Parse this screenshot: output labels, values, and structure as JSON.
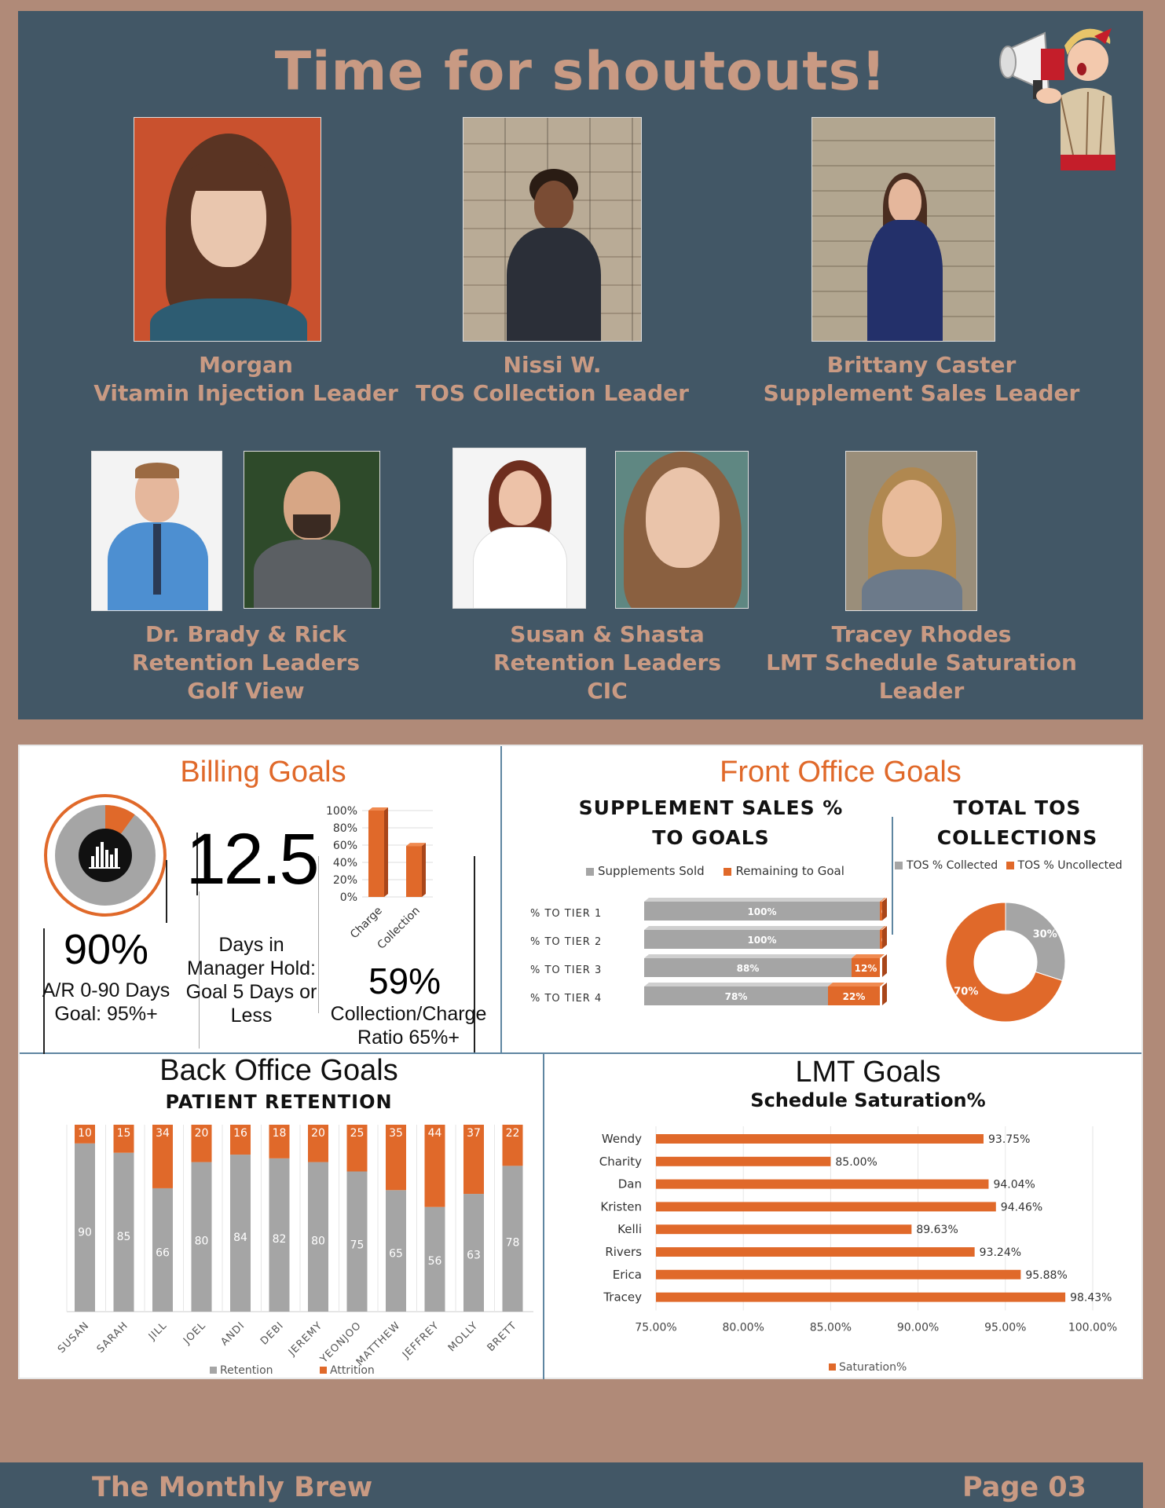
{
  "shoutouts": {
    "title": "Time for shoutouts!",
    "people": [
      {
        "lines": [
          "Morgan",
          "Vitamin Injection Leader"
        ]
      },
      {
        "lines": [
          "Nissi W.",
          "TOS Collection Leader"
        ]
      },
      {
        "lines": [
          "Brittany  Caster",
          "Supplement Sales Leader"
        ]
      },
      {
        "lines": [
          "Dr. Brady & Rick",
          "Retention Leaders",
          "Golf View"
        ]
      },
      {
        "lines": [
          "Susan & Shasta",
          "Retention Leaders",
          "CIC"
        ]
      },
      {
        "lines": [
          "Tracey Rhodes",
          "LMT Schedule Saturation",
          "Leader"
        ]
      }
    ]
  },
  "billing": {
    "title": "Billing Goals",
    "ar_gauge": {
      "value_label": "90%",
      "value": 90,
      "caption": [
        "A/R 0-90 Days",
        "Goal: 95%+"
      ],
      "icon": "bar-chart-icon"
    },
    "hold": {
      "value": "12.5",
      "caption": [
        "Days in",
        "Manager Hold:",
        "Goal 5 Days or",
        "Less"
      ]
    },
    "ratio": {
      "value_label": "59%",
      "caption": [
        "Collection/Charge",
        "Ratio 65%+"
      ]
    }
  },
  "front_office": {
    "title": "Front Office Goals",
    "supplement_title": [
      "SUPPLEMENT SALES %",
      "TO GOALS"
    ],
    "tos_title": [
      "TOTAL TOS",
      "COLLECTIONS"
    ]
  },
  "back_office": {
    "title": "Back Office Goals",
    "subtitle": "PATIENT RETENTION"
  },
  "lmt": {
    "title": "LMT Goals",
    "subtitle": "Schedule Saturation%"
  },
  "chart_data": [
    {
      "type": "bar",
      "id": "charge-collection",
      "categories": [
        "Charge",
        "Collection"
      ],
      "values": [
        100,
        59
      ],
      "ylim": [
        0,
        100
      ],
      "yticks": [
        "0%",
        "20%",
        "40%",
        "60%",
        "80%",
        "100%"
      ]
    },
    {
      "type": "bar",
      "id": "supplement-sales",
      "orientation": "horizontal-stacked",
      "categories": [
        "% TO TIER 1",
        "% TO TIER 2",
        "% TO TIER 3",
        "% TO TIER 4"
      ],
      "series": [
        {
          "name": "Supplements Sold",
          "values": [
            100,
            100,
            88,
            78
          ],
          "labels": [
            "100%",
            "100%",
            "88%",
            "78%"
          ],
          "color": "#a5a5a5"
        },
        {
          "name": "Remaining to Goal",
          "values": [
            0,
            0,
            12,
            22
          ],
          "labels": [
            "0%",
            "0%",
            "12%",
            "22%"
          ],
          "color": "#e0692a"
        }
      ]
    },
    {
      "type": "pie",
      "id": "tos-collections",
      "donut": true,
      "slices": [
        {
          "name": "TOS % Collected",
          "value": 30,
          "label": "30%",
          "color": "#a5a5a5"
        },
        {
          "name": "TOS % Uncollected",
          "value": 70,
          "label": "70%",
          "color": "#e0692a"
        }
      ]
    },
    {
      "type": "bar",
      "id": "patient-retention",
      "orientation": "vertical-stacked",
      "categories": [
        "SUSAN",
        "SARAH",
        "JILL",
        "JOEL",
        "ANDI",
        "DEBI",
        "JEREMY",
        "YEONJOO",
        "MATTHEW",
        "JEFFREY",
        "MOLLY",
        "BRETT"
      ],
      "series": [
        {
          "name": "Retention",
          "values": [
            90,
            85,
            66,
            80,
            84,
            82,
            80,
            75,
            65,
            56,
            63,
            78
          ],
          "color": "#a5a5a5"
        },
        {
          "name": "Attrition",
          "values": [
            10,
            15,
            34,
            20,
            16,
            18,
            20,
            25,
            35,
            44,
            37,
            22
          ],
          "color": "#e0692a"
        }
      ]
    },
    {
      "type": "bar",
      "id": "schedule-saturation",
      "orientation": "horizontal",
      "categories": [
        "Wendy",
        "Charity",
        "Dan",
        "Kristen",
        "Kelli",
        "Rivers",
        "Erica",
        "Tracey"
      ],
      "series": [
        {
          "name": "Saturation%",
          "values": [
            93.75,
            85.0,
            94.04,
            94.46,
            89.63,
            93.24,
            95.88,
            98.43
          ],
          "labels": [
            "93.75%",
            "85.00%",
            "94.04%",
            "94.46%",
            "89.63%",
            "93.24%",
            "95.88%",
            "98.43%"
          ],
          "color": "#e0692a"
        }
      ],
      "xlim": [
        75,
        100
      ],
      "xticks": [
        "75.00%",
        "80.00%",
        "85.00%",
        "90.00%",
        "95.00%",
        "100.00%"
      ]
    }
  ],
  "footer": {
    "left": "The Monthly Brew",
    "right": "Page 03"
  }
}
